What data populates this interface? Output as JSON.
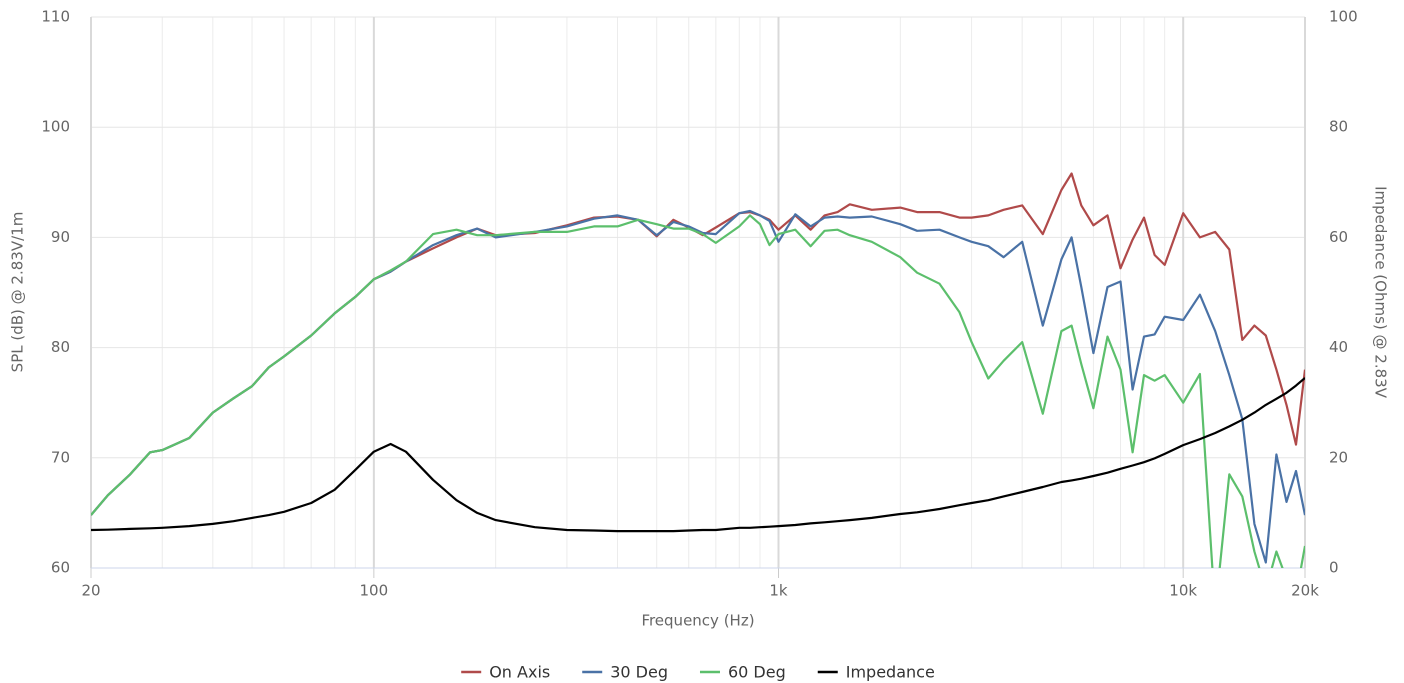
{
  "chart_data": {
    "type": "line",
    "xlabel": "Frequency (Hz)",
    "ylabel": "SPL (dB) @ 2.83V/1m",
    "y2label": "Impedance (Ohms) @ 2.83V",
    "xscale": "log",
    "grid": true,
    "legend": "bottom",
    "xlim": [
      20,
      20000
    ],
    "xticks": [
      20,
      100,
      {
        "value": 1000,
        "label": "1k"
      },
      {
        "value": 10000,
        "label": "10k"
      },
      {
        "value": 20000,
        "label": "20k"
      }
    ],
    "xminor": [
      30,
      40,
      50,
      60,
      70,
      80,
      90,
      200,
      300,
      400,
      500,
      600,
      700,
      800,
      900,
      2000,
      3000,
      4000,
      5000,
      6000,
      7000,
      8000,
      9000
    ],
    "ylim": [
      60,
      110
    ],
    "yticks": [
      60,
      70,
      80,
      90,
      100,
      110
    ],
    "y2lim": [
      0,
      100
    ],
    "y2ticks": [
      0,
      20,
      40,
      60,
      80,
      100
    ],
    "x": [
      20,
      22,
      25,
      28,
      30,
      35,
      40,
      45,
      50,
      55,
      60,
      70,
      80,
      90,
      100,
      110,
      120,
      140,
      160,
      180,
      200,
      250,
      300,
      350,
      400,
      450,
      500,
      550,
      600,
      650,
      700,
      800,
      850,
      900,
      950,
      1000,
      1100,
      1200,
      1300,
      1400,
      1500,
      1700,
      2000,
      2200,
      2500,
      2800,
      3000,
      3300,
      3600,
      4000,
      4500,
      5000,
      5300,
      5600,
      6000,
      6500,
      7000,
      7500,
      8000,
      8500,
      9000,
      10000,
      11000,
      12000,
      13000,
      14000,
      15000,
      16000,
      17000,
      18000,
      19000,
      20000
    ],
    "series": [
      {
        "name": "On Axis",
        "color": "#b04a4a",
        "values": [
          64.8,
          66.6,
          68.5,
          70.5,
          70.7,
          71.8,
          74.1,
          75.4,
          76.5,
          78.2,
          79.2,
          81.1,
          83.1,
          84.6,
          86.2,
          86.9,
          87.8,
          89.0,
          90.0,
          90.8,
          90.2,
          90.4,
          91.1,
          91.8,
          91.9,
          91.6,
          90.1,
          91.6,
          90.9,
          90.2,
          90.9,
          92.2,
          92.3,
          92.0,
          91.6,
          90.7,
          92.0,
          90.7,
          92.0,
          92.3,
          93.0,
          92.5,
          92.7,
          92.3,
          92.3,
          91.8,
          91.8,
          92.0,
          92.5,
          92.9,
          90.3,
          94.3,
          95.8,
          92.9,
          91.1,
          92.0,
          87.2,
          89.8,
          91.8,
          88.4,
          87.5,
          92.2,
          90.0,
          90.5,
          88.9,
          80.7,
          82.0,
          81.1,
          78.0,
          74.8,
          71.2,
          78.0
        ]
      },
      {
        "name": "30 Deg",
        "color": "#4a72a6",
        "values": [
          64.8,
          66.6,
          68.5,
          70.5,
          70.7,
          71.8,
          74.1,
          75.4,
          76.5,
          78.2,
          79.2,
          81.1,
          83.1,
          84.6,
          86.2,
          86.9,
          87.8,
          89.3,
          90.2,
          90.8,
          90.0,
          90.5,
          91.0,
          91.7,
          92.0,
          91.6,
          90.2,
          91.4,
          91.0,
          90.4,
          90.3,
          92.2,
          92.4,
          92.0,
          91.5,
          89.6,
          92.1,
          91.0,
          91.8,
          91.9,
          91.8,
          91.9,
          91.2,
          90.6,
          90.7,
          90.0,
          89.6,
          89.2,
          88.2,
          89.6,
          82.0,
          88.0,
          90.0,
          85.5,
          79.5,
          85.5,
          86.0,
          76.2,
          81.0,
          81.2,
          82.8,
          82.5,
          84.8,
          81.5,
          77.5,
          73.5,
          64.0,
          60.5,
          70.3,
          66.0,
          68.8,
          64.8
        ]
      },
      {
        "name": "60 Deg",
        "color": "#5cbf6c",
        "values": [
          64.8,
          66.6,
          68.5,
          70.5,
          70.7,
          71.8,
          74.1,
          75.4,
          76.5,
          78.2,
          79.2,
          81.1,
          83.1,
          84.6,
          86.2,
          87.0,
          87.8,
          90.3,
          90.7,
          90.2,
          90.2,
          90.5,
          90.5,
          91.0,
          91.0,
          91.6,
          91.2,
          90.8,
          90.8,
          90.3,
          89.5,
          91.0,
          92.0,
          91.2,
          89.3,
          90.3,
          90.7,
          89.2,
          90.6,
          90.7,
          90.2,
          89.6,
          88.2,
          86.8,
          85.8,
          83.2,
          80.5,
          77.2,
          78.8,
          80.5,
          74.0,
          81.5,
          82.0,
          78.5,
          74.5,
          81.0,
          78.0,
          70.5,
          77.5,
          77.0,
          77.5,
          75.0,
          77.6,
          56.0,
          68.5,
          66.5,
          61.5,
          58.0,
          61.5,
          59.0,
          57.5,
          62.0
        ]
      },
      {
        "name": "Impedance",
        "color": "#000000",
        "axis": "y2",
        "values": [
          6.9,
          6.95,
          7.1,
          7.2,
          7.3,
          7.6,
          8.0,
          8.5,
          9.1,
          9.6,
          10.2,
          11.8,
          14.2,
          17.8,
          21.1,
          22.5,
          21.1,
          16.0,
          12.3,
          10.0,
          8.7,
          7.4,
          6.9,
          6.8,
          6.7,
          6.7,
          6.7,
          6.7,
          6.8,
          6.9,
          6.9,
          7.3,
          7.3,
          7.4,
          7.5,
          7.6,
          7.8,
          8.1,
          8.3,
          8.5,
          8.7,
          9.1,
          9.8,
          10.1,
          10.7,
          11.4,
          11.8,
          12.3,
          13.0,
          13.8,
          14.7,
          15.6,
          15.9,
          16.2,
          16.7,
          17.3,
          18.0,
          18.6,
          19.2,
          19.9,
          20.7,
          22.3,
          23.4,
          24.5,
          25.7,
          26.9,
          28.2,
          29.6,
          30.7,
          31.8,
          33.1,
          34.5
        ]
      }
    ]
  }
}
